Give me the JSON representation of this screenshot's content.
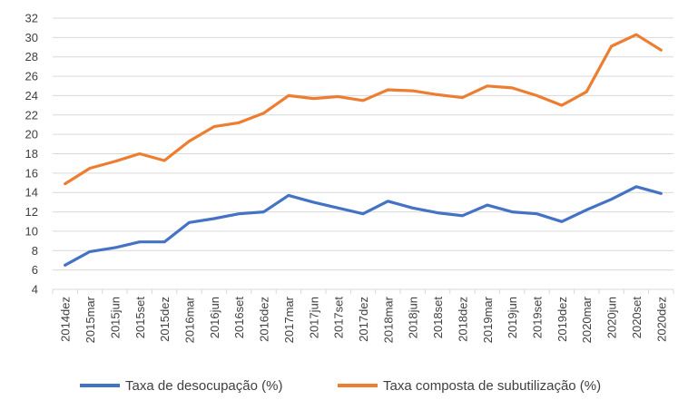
{
  "chart_data": {
    "type": "line",
    "categories": [
      "2014dez",
      "2015mar",
      "2015jun",
      "2015set",
      "2015dez",
      "2016mar",
      "2016jun",
      "2016set",
      "2016dez",
      "2017mar",
      "2017jun",
      "2017set",
      "2017dez",
      "2018mar",
      "2018jun",
      "2018set",
      "2018dez",
      "2019mar",
      "2019jun",
      "2019set",
      "2019dez",
      "2020mar",
      "2020jun",
      "2020set",
      "2020dez"
    ],
    "series": [
      {
        "name": "Taxa de desocupação (%)",
        "color": "#4472C4",
        "values": [
          6.5,
          7.9,
          8.3,
          8.9,
          8.9,
          10.9,
          11.3,
          11.8,
          12.0,
          13.7,
          13.0,
          12.4,
          11.8,
          13.1,
          12.4,
          11.9,
          11.6,
          12.7,
          12.0,
          11.8,
          11.0,
          12.2,
          13.3,
          14.6,
          13.9
        ]
      },
      {
        "name": "Taxa composta de subutilização (%)",
        "color": "#ED7D31",
        "values": [
          14.9,
          16.5,
          17.2,
          18.0,
          17.3,
          19.3,
          20.8,
          21.2,
          22.2,
          24.0,
          23.7,
          23.9,
          23.5,
          24.6,
          24.5,
          24.1,
          23.8,
          25.0,
          24.8,
          24.0,
          23.0,
          24.4,
          29.1,
          30.3,
          28.7
        ]
      }
    ],
    "yticks": [
      "4",
      "6",
      "8",
      "10",
      "12",
      "14",
      "16",
      "18",
      "20",
      "22",
      "24",
      "26",
      "28",
      "30",
      "32"
    ],
    "ylim": [
      4,
      32
    ],
    "grid": true,
    "legend_position": "bottom"
  }
}
